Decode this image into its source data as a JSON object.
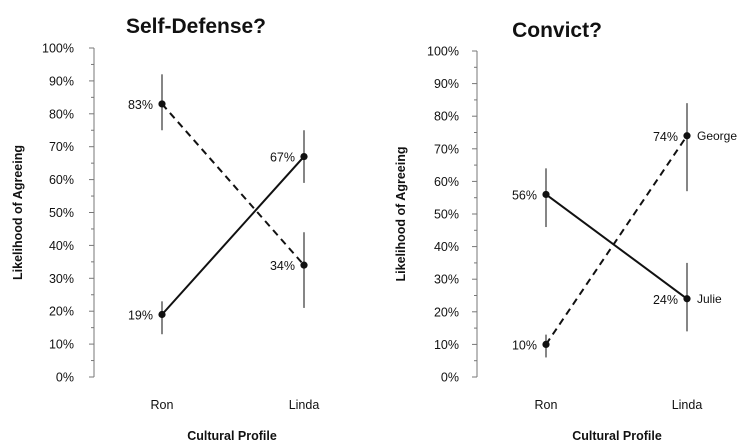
{
  "chart_data": [
    {
      "type": "line",
      "title": "Self-Defense?",
      "xlabel": "Cultural Profile",
      "ylabel": "Likelihood of Agreeing",
      "categories": [
        "Ron",
        "Linda"
      ],
      "ylim": [
        0,
        100
      ],
      "yticks": [
        "0%",
        "10%",
        "20%",
        "30%",
        "40%",
        "50%",
        "60%",
        "70%",
        "80%",
        "90%",
        "100%"
      ],
      "grid": false,
      "series": [
        {
          "style": "dashed",
          "values": [
            83,
            34
          ],
          "error_low": [
            75,
            21
          ],
          "error_high": [
            92,
            44
          ],
          "labels": [
            "83%",
            "34%"
          ]
        },
        {
          "style": "solid",
          "values": [
            19,
            67
          ],
          "error_low": [
            13,
            59
          ],
          "error_high": [
            23,
            75
          ],
          "labels": [
            "19%",
            "67%"
          ]
        }
      ]
    },
    {
      "type": "line",
      "title": "Convict?",
      "xlabel": "Cultural Profile",
      "ylabel": "Likelihood of Agreeing",
      "categories": [
        "Ron",
        "Linda"
      ],
      "ylim": [
        0,
        100
      ],
      "yticks": [
        "0%",
        "10%",
        "20%",
        "30%",
        "40%",
        "50%",
        "60%",
        "70%",
        "80%",
        "90%",
        "100%"
      ],
      "grid": false,
      "series": [
        {
          "name": "George",
          "style": "dashed",
          "values": [
            10,
            74
          ],
          "error_low": [
            6,
            57
          ],
          "error_high": [
            13,
            84
          ],
          "labels": [
            "10%",
            "74%"
          ]
        },
        {
          "name": "Julie",
          "style": "solid",
          "values": [
            56,
            24
          ],
          "error_low": [
            46,
            14
          ],
          "error_high": [
            64,
            35
          ],
          "labels": [
            "56%",
            "24%"
          ]
        }
      ]
    }
  ]
}
